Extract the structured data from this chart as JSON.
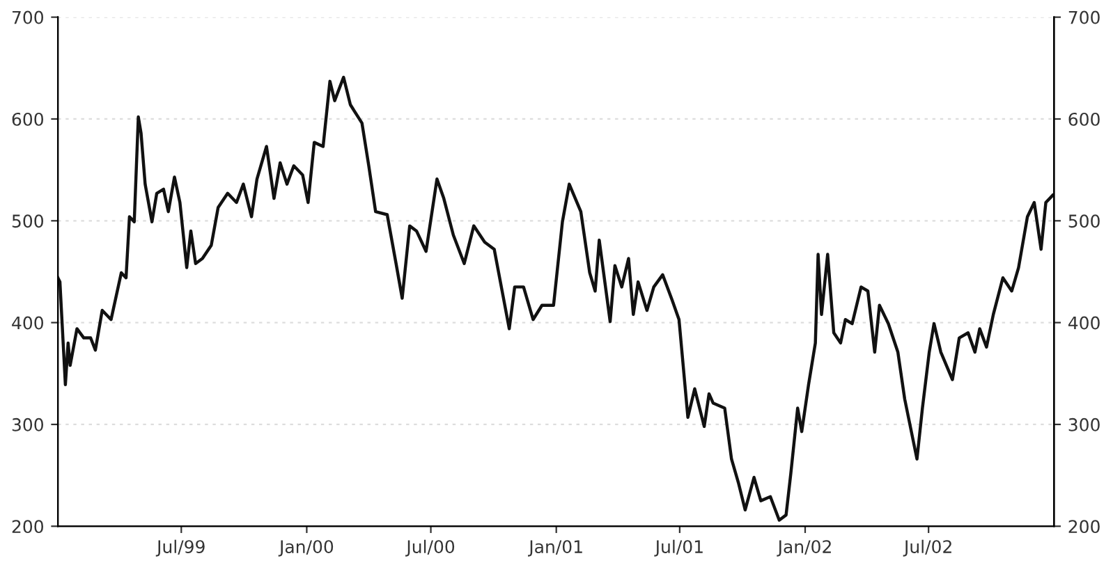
{
  "chart_data": {
    "type": "line",
    "grid": "y",
    "legend": false,
    "marker": "none",
    "line_style": "solid",
    "xlim": [
      "1999-01-01",
      "2003-01-01"
    ],
    "xticks": [
      {
        "value": "1999-07-01",
        "label": "Jul/99"
      },
      {
        "value": "2000-01-01",
        "label": "Jan/00"
      },
      {
        "value": "2000-07-01",
        "label": "Jul/00"
      },
      {
        "value": "2001-01-01",
        "label": "Jan/01"
      },
      {
        "value": "2001-07-01",
        "label": "Jul/01"
      },
      {
        "value": "2002-01-01",
        "label": "Jan/02"
      },
      {
        "value": "2002-07-01",
        "label": "Jul/02"
      }
    ],
    "ylim": [
      200,
      700
    ],
    "yticks": [
      200,
      300,
      400,
      500,
      600,
      700
    ],
    "y2lim": [
      200,
      700
    ],
    "y2ticks": [
      200,
      300,
      400,
      500,
      600,
      700
    ],
    "x": [
      "1999-01-01",
      "1999-01-04",
      "1999-01-12",
      "1999-01-16",
      "1999-01-19",
      "1999-01-29",
      "1999-02-08",
      "1999-02-18",
      "1999-02-25",
      "1999-03-07",
      "1999-03-20",
      "1999-04-04",
      "1999-04-11",
      "1999-04-16",
      "1999-04-23",
      "1999-04-29",
      "1999-05-03",
      "1999-05-09",
      "1999-05-19",
      "1999-05-26",
      "1999-06-05",
      "1999-06-12",
      "1999-06-21",
      "1999-06-29",
      "1999-07-09",
      "1999-07-15",
      "1999-07-22",
      "1999-08-01",
      "1999-08-14",
      "1999-08-24",
      "1999-09-07",
      "1999-09-20",
      "1999-09-30",
      "1999-10-12",
      "1999-10-20",
      "1999-11-03",
      "1999-11-14",
      "1999-11-23",
      "1999-12-03",
      "1999-12-13",
      "1999-12-26",
      "2000-01-03",
      "2000-01-12",
      "2000-01-25",
      "2000-02-04",
      "2000-02-11",
      "2000-02-24",
      "2000-03-05",
      "2000-03-22",
      "2000-04-01",
      "2000-04-11",
      "2000-04-28",
      "2000-05-11",
      "2000-05-20",
      "2000-05-31",
      "2000-06-10",
      "2000-06-24",
      "2000-07-10",
      "2000-07-20",
      "2000-08-03",
      "2000-08-19",
      "2000-09-02",
      "2000-09-18",
      "2000-10-02",
      "2000-10-15",
      "2000-10-24",
      "2000-11-01",
      "2000-11-14",
      "2000-11-28",
      "2000-12-11",
      "2000-12-28",
      "2001-01-10",
      "2001-01-20",
      "2001-02-06",
      "2001-02-19",
      "2001-02-27",
      "2001-03-05",
      "2001-03-21",
      "2001-03-28",
      "2001-04-07",
      "2001-04-17",
      "2001-04-24",
      "2001-05-01",
      "2001-05-14",
      "2001-05-24",
      "2001-06-06",
      "2001-06-20",
      "2001-06-30",
      "2001-07-13",
      "2001-07-23",
      "2001-08-06",
      "2001-08-13",
      "2001-08-19",
      "2001-09-05",
      "2001-09-15",
      "2001-09-25",
      "2001-10-05",
      "2001-10-18",
      "2001-10-28",
      "2001-11-11",
      "2001-11-24",
      "2001-12-04",
      "2001-12-11",
      "2001-12-21",
      "2001-12-27",
      "2002-01-06",
      "2002-01-16",
      "2002-01-20",
      "2002-01-25",
      "2002-02-03",
      "2002-02-12",
      "2002-02-22",
      "2002-03-01",
      "2002-03-11",
      "2002-03-24",
      "2002-04-03",
      "2002-04-13",
      "2002-04-20",
      "2002-05-03",
      "2002-05-17",
      "2002-05-27",
      "2002-06-14",
      "2002-06-22",
      "2002-07-02",
      "2002-07-09",
      "2002-07-19",
      "2002-08-05",
      "2002-08-15",
      "2002-08-28",
      "2002-09-07",
      "2002-09-14",
      "2002-09-24",
      "2002-10-04",
      "2002-10-18",
      "2002-10-31",
      "2002-11-10",
      "2002-11-23",
      "2002-12-03",
      "2002-12-13",
      "2002-12-20",
      "2002-12-30"
    ],
    "series": [
      {
        "color": "#111111",
        "values": [
          444,
          440,
          339,
          380,
          358,
          394,
          385,
          385,
          373,
          412,
          403,
          449,
          444,
          504,
          499,
          602,
          586,
          536,
          499,
          527,
          531,
          509,
          543,
          518,
          454,
          490,
          458,
          463,
          476,
          513,
          527,
          518,
          536,
          504,
          541,
          573,
          522,
          557,
          536,
          554,
          545,
          518,
          577,
          573,
          637,
          618,
          641,
          614,
          596,
          554,
          509,
          506,
          458,
          424,
          495,
          490,
          470,
          541,
          522,
          486,
          458,
          495,
          479,
          472,
          426,
          394,
          435,
          435,
          403,
          417,
          417,
          499,
          536,
          509,
          449,
          431,
          481,
          401,
          456,
          435,
          463,
          408,
          440,
          412,
          435,
          447,
          422,
          403,
          307,
          335,
          298,
          330,
          321,
          316,
          266,
          243,
          216,
          248,
          225,
          229,
          206,
          211,
          252,
          316,
          293,
          339,
          380,
          467,
          408,
          467,
          390,
          380,
          403,
          399,
          435,
          431,
          371,
          417,
          399,
          371,
          325,
          266,
          316,
          371,
          399,
          371,
          344,
          385,
          390,
          371,
          394,
          376,
          408,
          444,
          431,
          454,
          504,
          518,
          472,
          518,
          525
        ]
      }
    ]
  }
}
